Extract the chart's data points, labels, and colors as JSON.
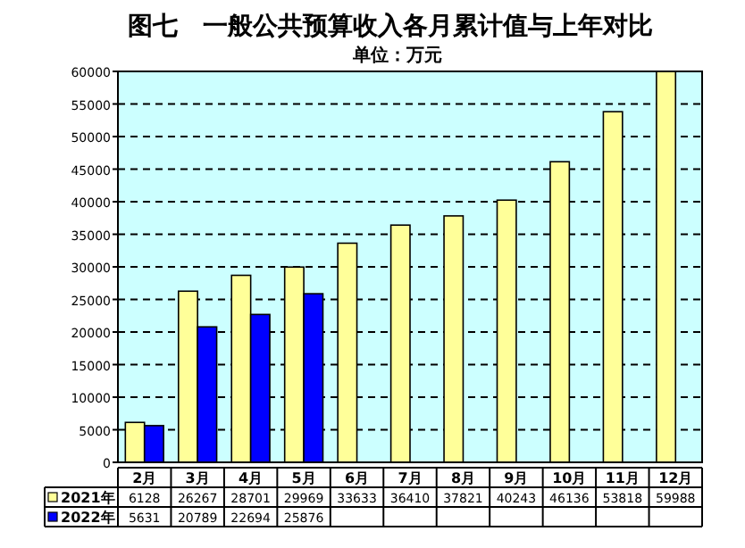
{
  "chart_data": {
    "type": "bar",
    "title": "图七　一般公共预算收入各月累计值与上年对比",
    "subtitle": "单位：万元",
    "categories": [
      "2月",
      "3月",
      "4月",
      "5月",
      "6月",
      "7月",
      "8月",
      "9月",
      "10月",
      "11月",
      "12月"
    ],
    "series": [
      {
        "name": "2021年",
        "color": "#ffff99",
        "values": [
          6128,
          26267,
          28701,
          29969,
          33633,
          36410,
          37821,
          40243,
          46136,
          53818,
          59988
        ]
      },
      {
        "name": "2022年",
        "color": "#0000ff",
        "values": [
          5631,
          20789,
          22694,
          25876,
          null,
          null,
          null,
          null,
          null,
          null,
          null
        ]
      }
    ],
    "ylim": [
      0,
      60000
    ],
    "yticks": [
      0,
      5000,
      10000,
      15000,
      20000,
      25000,
      30000,
      35000,
      40000,
      45000,
      50000,
      55000,
      60000
    ],
    "grid": "y",
    "legend": "bottom",
    "data_labels": true
  }
}
